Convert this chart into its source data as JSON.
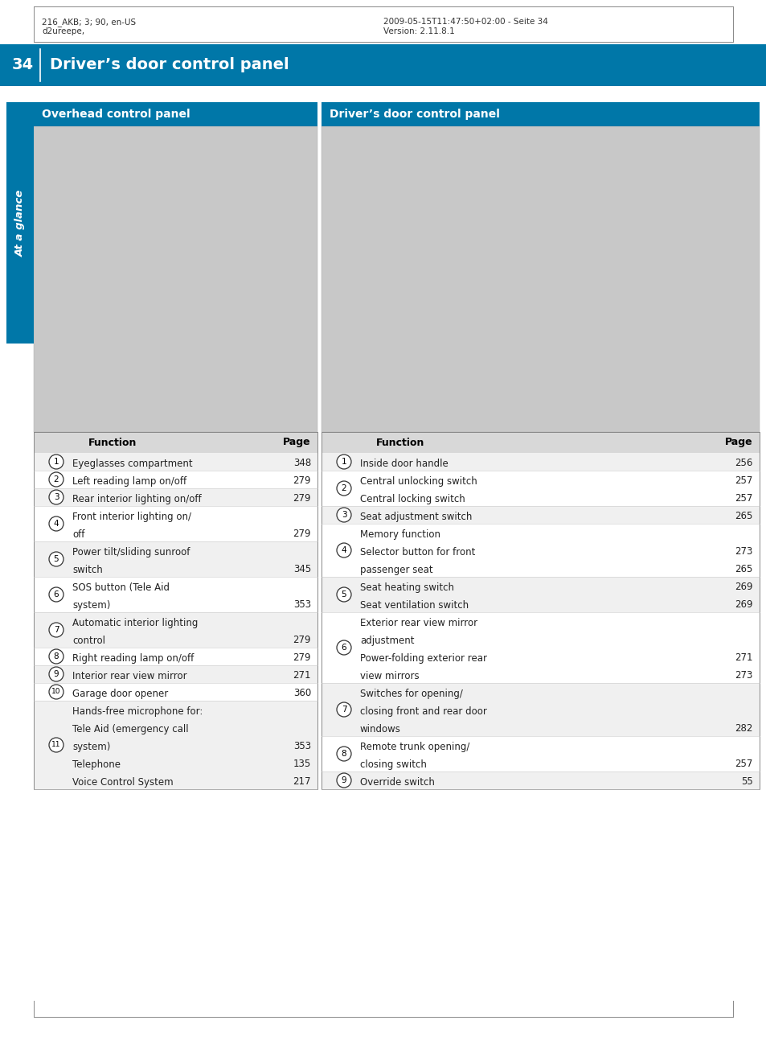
{
  "page_number": "34",
  "header_title": "Driver’s door control panel",
  "header_left_line1": "216_AKB; 3; 90, en-US",
  "header_left_line2": "d2ureepe,",
  "header_right_line1": "2009-05-15T11:47:50+02:00 - Seite 34",
  "header_right_line2": "Version: 2.11.8.1",
  "header_bg": "#0077a8",
  "section_bg": "#0077a8",
  "overhead_title": "Overhead control panel",
  "driver_title": "Driver’s door control panel",
  "side_label": "At a glance",
  "left_table_header": [
    "Function",
    "Page"
  ],
  "left_rows": [
    {
      "num": "1",
      "function": "Eyeglasses compartment",
      "page": "348",
      "lines": 1,
      "page_lines": 1
    },
    {
      "num": "2",
      "function": "Left reading lamp on/off",
      "page": "279",
      "lines": 1,
      "page_lines": 1
    },
    {
      "num": "3",
      "function": "Rear interior lighting on/off",
      "page": "279",
      "lines": 1,
      "page_lines": 1
    },
    {
      "num": "4",
      "function": "Front interior lighting on/\noff",
      "page": "279",
      "lines": 2,
      "page_lines": 1
    },
    {
      "num": "5",
      "function": "Power tilt/sliding sunroof\nswitch",
      "page": "345",
      "lines": 2,
      "page_lines": 1
    },
    {
      "num": "6",
      "function": "SOS button (Tele Aid\nsystem)",
      "page": "353",
      "lines": 2,
      "page_lines": 1
    },
    {
      "num": "7",
      "function": "Automatic interior lighting\ncontrol",
      "page": "279",
      "lines": 2,
      "page_lines": 1
    },
    {
      "num": "8",
      "function": "Right reading lamp on/off",
      "page": "279",
      "lines": 1,
      "page_lines": 1
    },
    {
      "num": "9",
      "function": "Interior rear view mirror",
      "page": "271",
      "lines": 1,
      "page_lines": 1
    },
    {
      "num": "10",
      "function": "Garage door opener",
      "page": "360",
      "lines": 1,
      "page_lines": 1
    },
    {
      "num": "11",
      "function": "Hands-free microphone for:\nTele Aid (emergency call\nsystem)\nTelephone\nVoice Control System",
      "page": "353\n135\n217",
      "lines": 5,
      "page_lines": 3
    }
  ],
  "right_table_header": [
    "Function",
    "Page"
  ],
  "right_rows": [
    {
      "num": "1",
      "function": "Inside door handle",
      "page": "256",
      "lines": 1,
      "page_lines": 1
    },
    {
      "num": "2",
      "function": "Central unlocking switch\nCentral locking switch",
      "page": "257\n257",
      "lines": 2,
      "page_lines": 2
    },
    {
      "num": "3",
      "function": "Seat adjustment switch",
      "page": "265",
      "lines": 1,
      "page_lines": 1
    },
    {
      "num": "4",
      "function": "Memory function\nSelector button for front\npassenger seat",
      "page": "273\n265",
      "lines": 3,
      "page_lines": 2
    },
    {
      "num": "5",
      "function": "Seat heating switch\nSeat ventilation switch",
      "page": "269\n269",
      "lines": 2,
      "page_lines": 2
    },
    {
      "num": "6",
      "function": "Exterior rear view mirror\nadjustment\nPower-folding exterior rear\nview mirrors",
      "page": "271\n273",
      "lines": 4,
      "page_lines": 2
    },
    {
      "num": "7",
      "function": "Switches for opening/\nclosing front and rear door\nwindows",
      "page": "282",
      "lines": 3,
      "page_lines": 1
    },
    {
      "num": "8",
      "function": "Remote trunk opening/\nclosing switch",
      "page": "257",
      "lines": 2,
      "page_lines": 1
    },
    {
      "num": "9",
      "function": "Override switch",
      "page": "55",
      "lines": 1,
      "page_lines": 1
    }
  ],
  "bg_color": "#ffffff",
  "table_row_bg_odd": "#f0f0f0",
  "table_row_bg_even": "#ffffff",
  "border_color": "#aaaaaa",
  "text_color": "#222222"
}
